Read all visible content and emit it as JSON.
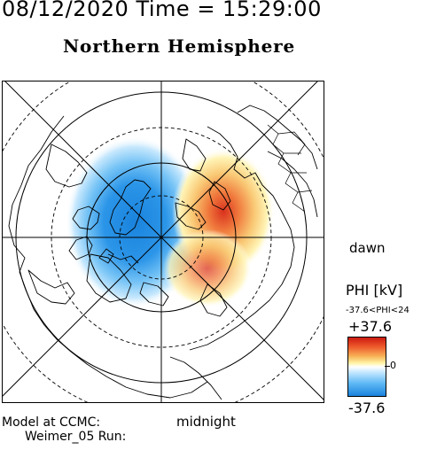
{
  "header": {
    "title": "08/12/2020 Time = 15:29:00",
    "subtitle": "Northern Hemisphere"
  },
  "labels": {
    "dawn": "dawn",
    "midnight": "midnight",
    "model_line1": "Model at CCMC:",
    "model_line2": "Weimer_05 Run:"
  },
  "colorbar": {
    "title": "PHI [kV]",
    "range_text": "-37.6<PHI<24",
    "max_label": "+37.6",
    "zero_label": "0",
    "min_label": "-37.6",
    "max_color": "#cc1a10",
    "min_color": "#1a83dd"
  },
  "map": {
    "projection": "polar north",
    "grid": "on",
    "negative_cell_color": "#1a83dd",
    "positive_cell_color": "#d9321e"
  }
}
